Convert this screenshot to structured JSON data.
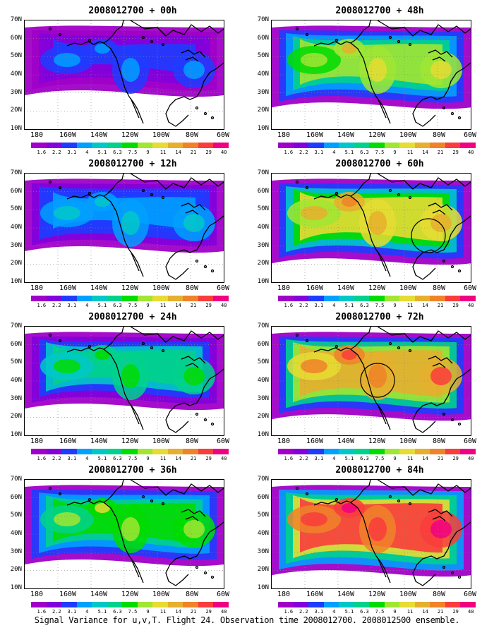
{
  "panels": [
    {
      "title": "2008012700 + 00h",
      "intensity": 0.15,
      "circle": false
    },
    {
      "title": "2008012700 + 12h",
      "intensity": 0.25,
      "circle": false
    },
    {
      "title": "2008012700 + 24h",
      "intensity": 0.4,
      "circle": false
    },
    {
      "title": "2008012700 + 36h",
      "intensity": 0.5,
      "circle": false
    },
    {
      "title": "2008012700 + 48h",
      "intensity": 0.58,
      "circle": false
    },
    {
      "title": "2008012700 + 60h",
      "intensity": 0.68,
      "circle": true
    },
    {
      "title": "2008012700 + 72h",
      "intensity": 0.78,
      "circle": true
    },
    {
      "title": "2008012700 + 84h",
      "intensity": 0.88,
      "circle": false
    }
  ],
  "lat_labels": [
    "70N",
    "60N",
    "50N",
    "40N",
    "30N",
    "20N",
    "10N"
  ],
  "lon_labels": [
    "180",
    "160W",
    "140W",
    "120W",
    "100W",
    "80W",
    "60W"
  ],
  "colorbar": {
    "labels": [
      "1.6",
      "2.2",
      "3.1",
      "4",
      "5.1",
      "6.3",
      "7.5",
      "9",
      "11",
      "14",
      "21",
      "29",
      "40"
    ],
    "colors": [
      "#a000c8",
      "#8200dc",
      "#1e3cff",
      "#00a0ff",
      "#00c8c8",
      "#00d28c",
      "#00dc00",
      "#a0e632",
      "#e6dc32",
      "#e6af2d",
      "#f08228",
      "#fa3c3c",
      "#f00082"
    ]
  },
  "caption": "Signal Variance for u,v,T. Flight 24. Observation time 2008012700. 2008012500 ensemble."
}
